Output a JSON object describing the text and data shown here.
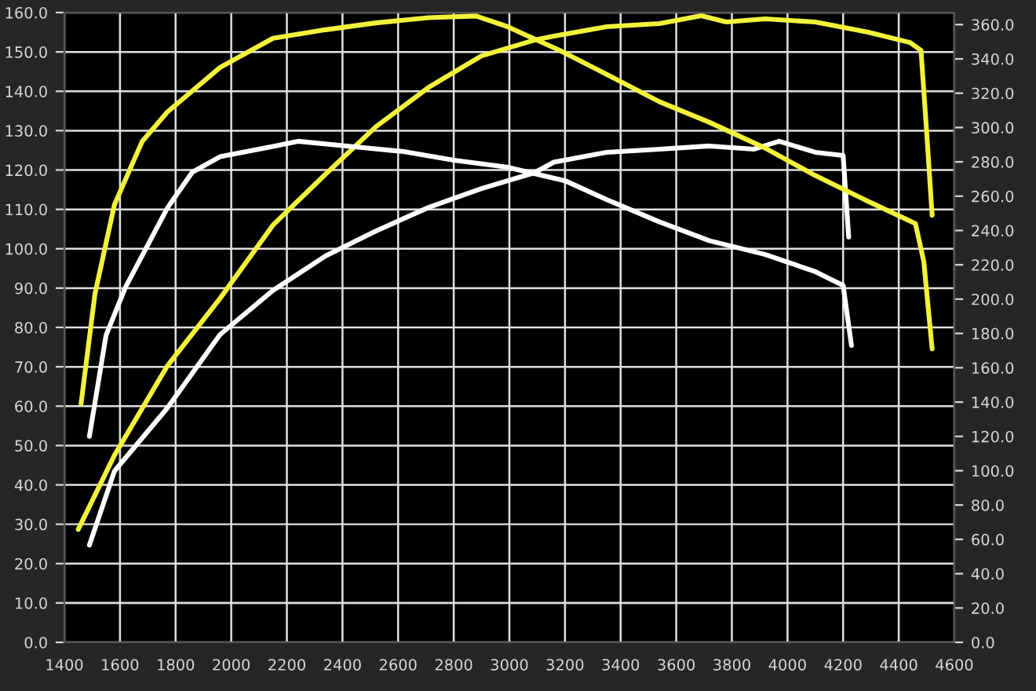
{
  "chart_data": {
    "type": "line",
    "grid": true,
    "xlim": [
      1400,
      4600
    ],
    "xticks": [
      1400,
      1600,
      1800,
      2000,
      2200,
      2400,
      2600,
      2800,
      3000,
      3200,
      3400,
      3600,
      3800,
      4000,
      4200,
      4400,
      4600
    ],
    "ylim": [
      0,
      160
    ],
    "yticks": [
      {
        "value": 0,
        "label": "0.0"
      },
      {
        "value": 10,
        "label": "10.0"
      },
      {
        "value": 20,
        "label": "20.0"
      },
      {
        "value": 30,
        "label": "30.0"
      },
      {
        "value": 40,
        "label": "40.0"
      },
      {
        "value": 50,
        "label": "50.0"
      },
      {
        "value": 60,
        "label": "60.0"
      },
      {
        "value": 70,
        "label": "70.0"
      },
      {
        "value": 80,
        "label": "80.0"
      },
      {
        "value": 90,
        "label": "90.0"
      },
      {
        "value": 100,
        "label": "100.0"
      },
      {
        "value": 110,
        "label": "110.0"
      },
      {
        "value": 120,
        "label": "120.0"
      },
      {
        "value": 130,
        "label": "130.0"
      },
      {
        "value": 140,
        "label": "140.0"
      },
      {
        "value": 150,
        "label": "150.0"
      },
      {
        "value": 160,
        "label": "160.0"
      }
    ],
    "y2lim": [
      0,
      367
    ],
    "y2ticks": [
      {
        "value": 0,
        "label": "0.0"
      },
      {
        "value": 20,
        "label": "20.0"
      },
      {
        "value": 40,
        "label": "40.0"
      },
      {
        "value": 60,
        "label": "60.0"
      },
      {
        "value": 80,
        "label": "80.0"
      },
      {
        "value": 100,
        "label": "100.0"
      },
      {
        "value": 120,
        "label": "120.0"
      },
      {
        "value": 140,
        "label": "140.0"
      },
      {
        "value": 160,
        "label": "160.0"
      },
      {
        "value": 180,
        "label": "180.0"
      },
      {
        "value": 200,
        "label": "200.0"
      },
      {
        "value": 220,
        "label": "220.0"
      },
      {
        "value": 240,
        "label": "240.0"
      },
      {
        "value": 260,
        "label": "260.0"
      },
      {
        "value": 280,
        "label": "280.0"
      },
      {
        "value": 300,
        "label": "300.0"
      },
      {
        "value": 320,
        "label": "320.0"
      },
      {
        "value": 340,
        "label": "340.0"
      },
      {
        "value": 360,
        "label": "360.0"
      }
    ],
    "marker": "none",
    "line_style": "solid",
    "series": [
      {
        "color": "#f2f23a",
        "x": [
          1450,
          1580,
          1770,
          1960,
          2150,
          2340,
          2520,
          2710,
          2900,
          3090,
          3160,
          3350,
          3540,
          3690,
          3780,
          3920,
          4100,
          4290,
          4440,
          4480,
          4500,
          4520
        ],
        "values": [
          28.7,
          47.5,
          70.2,
          87.4,
          106,
          119,
          131,
          141,
          149,
          153,
          154,
          156.4,
          157.2,
          159.2,
          157.6,
          158.4,
          157.6,
          155,
          152.4,
          150.4,
          130,
          108.5
        ]
      },
      {
        "color": "#f2f23a",
        "axis": "y2",
        "x": [
          1460,
          1510,
          1580,
          1680,
          1770,
          1960,
          2150,
          2340,
          2520,
          2710,
          2880,
          2990,
          3180,
          3350,
          3540,
          3720,
          3920,
          4100,
          4290,
          4460,
          4490,
          4520
        ],
        "values": [
          139,
          203,
          255,
          292,
          309,
          335,
          352,
          357,
          361,
          364,
          365,
          359,
          345,
          331,
          315,
          303,
          288,
          272,
          257,
          244,
          222,
          171
        ]
      },
      {
        "color": "#ffffff",
        "x": [
          1490,
          1580,
          1770,
          1960,
          2150,
          2340,
          2520,
          2710,
          2900,
          3090,
          3160,
          3350,
          3540,
          3720,
          3880,
          3970,
          4100,
          4200,
          4220
        ],
        "values": [
          24.7,
          43.5,
          59.5,
          78.2,
          89.4,
          98.2,
          104.5,
          110.5,
          115.3,
          119.3,
          122,
          124.5,
          125.3,
          126.1,
          125.3,
          127.3,
          124.5,
          123.7,
          103
        ]
      },
      {
        "color": "#ffffff",
        "axis": "y2",
        "x": [
          1490,
          1550,
          1620,
          1770,
          1860,
          1960,
          2150,
          2240,
          2430,
          2620,
          2800,
          2990,
          3200,
          3350,
          3540,
          3720,
          3920,
          4100,
          4200,
          4230
        ],
        "values": [
          120,
          179,
          207,
          253,
          274,
          283,
          289,
          292,
          289,
          286,
          281,
          277,
          269,
          258,
          245,
          234,
          226,
          216,
          208,
          173
        ]
      }
    ]
  }
}
